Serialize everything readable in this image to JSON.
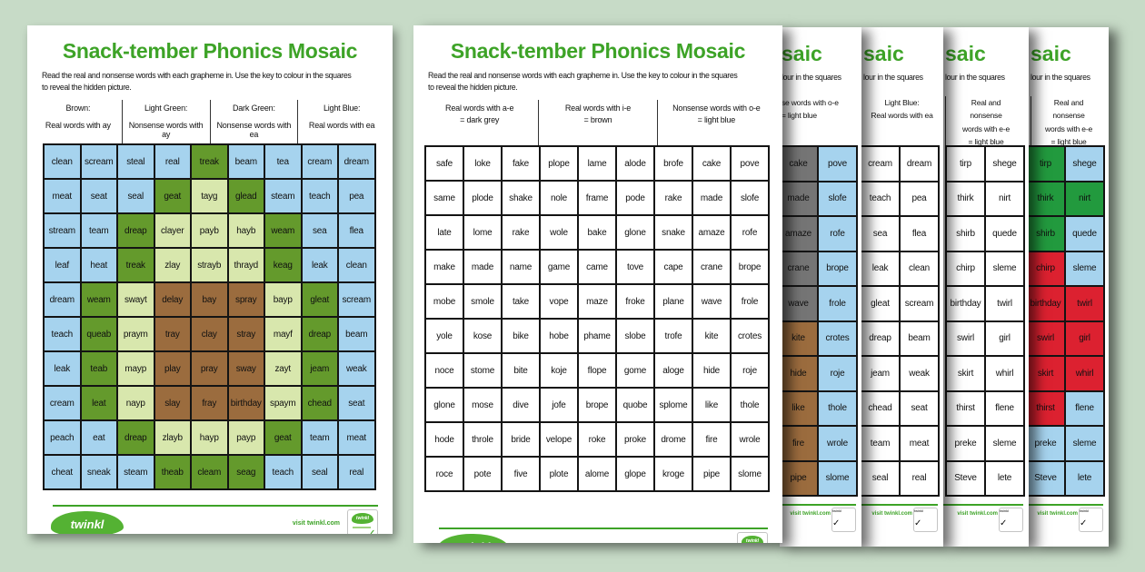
{
  "colors": {
    "background": "#c7dbc7",
    "page": "#ffffff",
    "title_green": "#3da327",
    "footer_line_green": "#3da327",
    "logo_green": "#54b233",
    "text": "#111111",
    "map": {
      "b": "#a6d3ee",
      "d": "#649a2c",
      "l": "#d8e7ad",
      "r": "#9b6c3e",
      "w": "#ffffff",
      "g": "#757575",
      "e": "#229a3e",
      "x": "#dc2130"
    }
  },
  "branding": {
    "logo_text": "twinkl",
    "visit_text": "visit twinkl.com",
    "badge_check": "✓"
  },
  "page1": {
    "title": "Snack-tember Phonics Mosaic",
    "instructions_line1": "Read the real and nonsense words with each grapheme in. Use the key to colour in the squares",
    "instructions_line2": "to reveal the hidden picture.",
    "key": [
      {
        "line1": "Brown:",
        "line2": "Real words with ay"
      },
      {
        "line1": "Light Green:",
        "line2": "Nonsense words with ay"
      },
      {
        "line1": "Dark Green:",
        "line2": "Nonsense words with ea"
      },
      {
        "line1": "Light Blue:",
        "line2": "Real words with ea"
      }
    ],
    "grid_words": [
      [
        "clean",
        "scream",
        "steal",
        "real",
        "treak",
        "beam",
        "tea",
        "cream",
        "dream"
      ],
      [
        "meat",
        "seat",
        "seal",
        "geat",
        "tayg",
        "glead",
        "steam",
        "teach",
        "pea"
      ],
      [
        "stream",
        "team",
        "dreap",
        "clayer",
        "payb",
        "hayb",
        "weam",
        "sea",
        "flea"
      ],
      [
        "leaf",
        "heat",
        "treak",
        "zlay",
        "strayb",
        "thrayd",
        "keag",
        "leak",
        "clean"
      ],
      [
        "dream",
        "weam",
        "swayt",
        "delay",
        "bay",
        "spray",
        "bayp",
        "gleat",
        "scream"
      ],
      [
        "teach",
        "queab",
        "praym",
        "tray",
        "clay",
        "stray",
        "mayf",
        "dreap",
        "beam"
      ],
      [
        "leak",
        "teab",
        "mayp",
        "play",
        "pray",
        "sway",
        "zayt",
        "jeam",
        "weak"
      ],
      [
        "cream",
        "leat",
        "nayp",
        "slay",
        "fray",
        "birthday",
        "spaym",
        "chead",
        "seat"
      ],
      [
        "peach",
        "eat",
        "dreap",
        "zlayb",
        "hayp",
        "payp",
        "geat",
        "team",
        "meat"
      ],
      [
        "cheat",
        "sneak",
        "steam",
        "theab",
        "cleam",
        "seag",
        "teach",
        "seal",
        "real"
      ]
    ],
    "grid_colors": [
      [
        "b",
        "b",
        "b",
        "b",
        "d",
        "b",
        "b",
        "b",
        "b"
      ],
      [
        "b",
        "b",
        "b",
        "d",
        "l",
        "d",
        "b",
        "b",
        "b"
      ],
      [
        "b",
        "b",
        "d",
        "l",
        "l",
        "l",
        "d",
        "b",
        "b"
      ],
      [
        "b",
        "b",
        "d",
        "l",
        "l",
        "l",
        "d",
        "b",
        "b"
      ],
      [
        "b",
        "d",
        "l",
        "r",
        "r",
        "r",
        "l",
        "d",
        "b"
      ],
      [
        "b",
        "d",
        "l",
        "r",
        "r",
        "r",
        "l",
        "d",
        "b"
      ],
      [
        "b",
        "d",
        "l",
        "r",
        "r",
        "r",
        "l",
        "d",
        "b"
      ],
      [
        "b",
        "d",
        "l",
        "r",
        "r",
        "r",
        "l",
        "d",
        "b"
      ],
      [
        "b",
        "b",
        "d",
        "l",
        "l",
        "l",
        "d",
        "b",
        "b"
      ],
      [
        "b",
        "b",
        "b",
        "d",
        "d",
        "d",
        "b",
        "b",
        "b"
      ]
    ]
  },
  "page2": {
    "title": "Snack-tember Phonics Mosaic",
    "instructions_line1": "Read the real and nonsense words with each grapheme in. Use the key to colour in the squares",
    "instructions_line2": "to reveal the hidden picture.",
    "key": [
      {
        "line1": "Real words with a-e",
        "line2": "= dark grey"
      },
      {
        "line1": "Real words with i-e",
        "line2": "= brown"
      },
      {
        "line1": "Nonsense words with o-e",
        "line2": "= light blue"
      }
    ],
    "grid_words": [
      [
        "safe",
        "loke",
        "fake",
        "plope",
        "lame",
        "alode",
        "brofe",
        "cake",
        "pove"
      ],
      [
        "same",
        "plode",
        "shake",
        "nole",
        "frame",
        "pode",
        "rake",
        "made",
        "slofe"
      ],
      [
        "late",
        "lome",
        "rake",
        "wole",
        "bake",
        "glone",
        "snake",
        "amaze",
        "rofe"
      ],
      [
        "make",
        "made",
        "name",
        "game",
        "came",
        "tove",
        "cape",
        "crane",
        "brope"
      ],
      [
        "mobe",
        "smole",
        "take",
        "vope",
        "maze",
        "froke",
        "plane",
        "wave",
        "frole"
      ],
      [
        "yole",
        "kose",
        "bike",
        "hobe",
        "phame",
        "slobe",
        "trofe",
        "kite",
        "crotes"
      ],
      [
        "noce",
        "stome",
        "bite",
        "koje",
        "flope",
        "gome",
        "aloge",
        "hide",
        "roje"
      ],
      [
        "glone",
        "mose",
        "dive",
        "jofe",
        "brope",
        "quobe",
        "splome",
        "like",
        "thole"
      ],
      [
        "hode",
        "throle",
        "bride",
        "velope",
        "roke",
        "proke",
        "drome",
        "fire",
        "wrole"
      ],
      [
        "roce",
        "pote",
        "five",
        "plote",
        "alome",
        "glope",
        "kroge",
        "pipe",
        "slome"
      ]
    ]
  },
  "slivers": [
    {
      "title_fragment": "saic",
      "instruction_fragment": "lour in the squares",
      "key_lines": [
        "se words with o-e",
        "= light blue"
      ],
      "col1_words": [
        "cake",
        "made",
        "amaze",
        "crane",
        "wave",
        "kite",
        "hide",
        "like",
        "fire",
        "pipe"
      ],
      "col1_colors": [
        "g",
        "g",
        "g",
        "g",
        "g",
        "r",
        "r",
        "r",
        "r",
        "r"
      ],
      "col2_words": [
        "pove",
        "slofe",
        "rofe",
        "brope",
        "frole",
        "crotes",
        "roje",
        "thole",
        "wrole",
        "slome"
      ],
      "col2_colors": [
        "b",
        "b",
        "b",
        "b",
        "b",
        "b",
        "b",
        "b",
        "b",
        "b"
      ]
    },
    {
      "title_fragment": "saic",
      "instruction_fragment": "lour in the squares",
      "key_lines": [
        "Light Blue:",
        "Real words with ea"
      ],
      "col1_words": [
        "cream",
        "teach",
        "sea",
        "leak",
        "gleat",
        "dreap",
        "jeam",
        "chead",
        "team",
        "seal"
      ],
      "col1_colors": [
        "w",
        "w",
        "w",
        "w",
        "w",
        "w",
        "w",
        "w",
        "w",
        "w"
      ],
      "col2_words": [
        "dream",
        "pea",
        "flea",
        "clean",
        "scream",
        "beam",
        "weak",
        "seat",
        "meat",
        "real"
      ],
      "col2_colors": [
        "w",
        "w",
        "w",
        "w",
        "w",
        "w",
        "w",
        "w",
        "w",
        "w"
      ]
    },
    {
      "title_fragment": "saic",
      "instruction_fragment": "lour in the squares",
      "key_lines": [
        "Real and",
        "nonsense",
        "words with e-e",
        "= light blue"
      ],
      "col1_words": [
        "tirp",
        "thirk",
        "shirb",
        "chirp",
        "birthday",
        "swirl",
        "skirt",
        "thirst",
        "preke",
        "Steve"
      ],
      "col1_colors": [
        "w",
        "w",
        "w",
        "w",
        "w",
        "w",
        "w",
        "w",
        "w",
        "w"
      ],
      "col2_words": [
        "shege",
        "nirt",
        "quede",
        "sleme",
        "twirl",
        "girl",
        "whirl",
        "flene",
        "sleme",
        "lete"
      ],
      "col2_colors": [
        "w",
        "w",
        "w",
        "w",
        "w",
        "w",
        "w",
        "w",
        "w",
        "w"
      ]
    },
    {
      "title_fragment": "saic",
      "instruction_fragment": "lour in the squares",
      "key_lines": [
        "Real and",
        "nonsense",
        "words with e-e",
        "= light blue"
      ],
      "col1_words": [
        "tirp",
        "thirk",
        "shirb",
        "chirp",
        "birthday",
        "swirl",
        "skirt",
        "thirst",
        "preke",
        "Steve"
      ],
      "col1_colors": [
        "e",
        "e",
        "e",
        "x",
        "x",
        "x",
        "x",
        "x",
        "b",
        "b"
      ],
      "col2_words": [
        "shege",
        "nirt",
        "quede",
        "sleme",
        "twirl",
        "girl",
        "whirl",
        "flene",
        "sleme",
        "lete"
      ],
      "col2_colors": [
        "b",
        "e",
        "b",
        "b",
        "x",
        "x",
        "x",
        "b",
        "b",
        "b"
      ]
    }
  ]
}
